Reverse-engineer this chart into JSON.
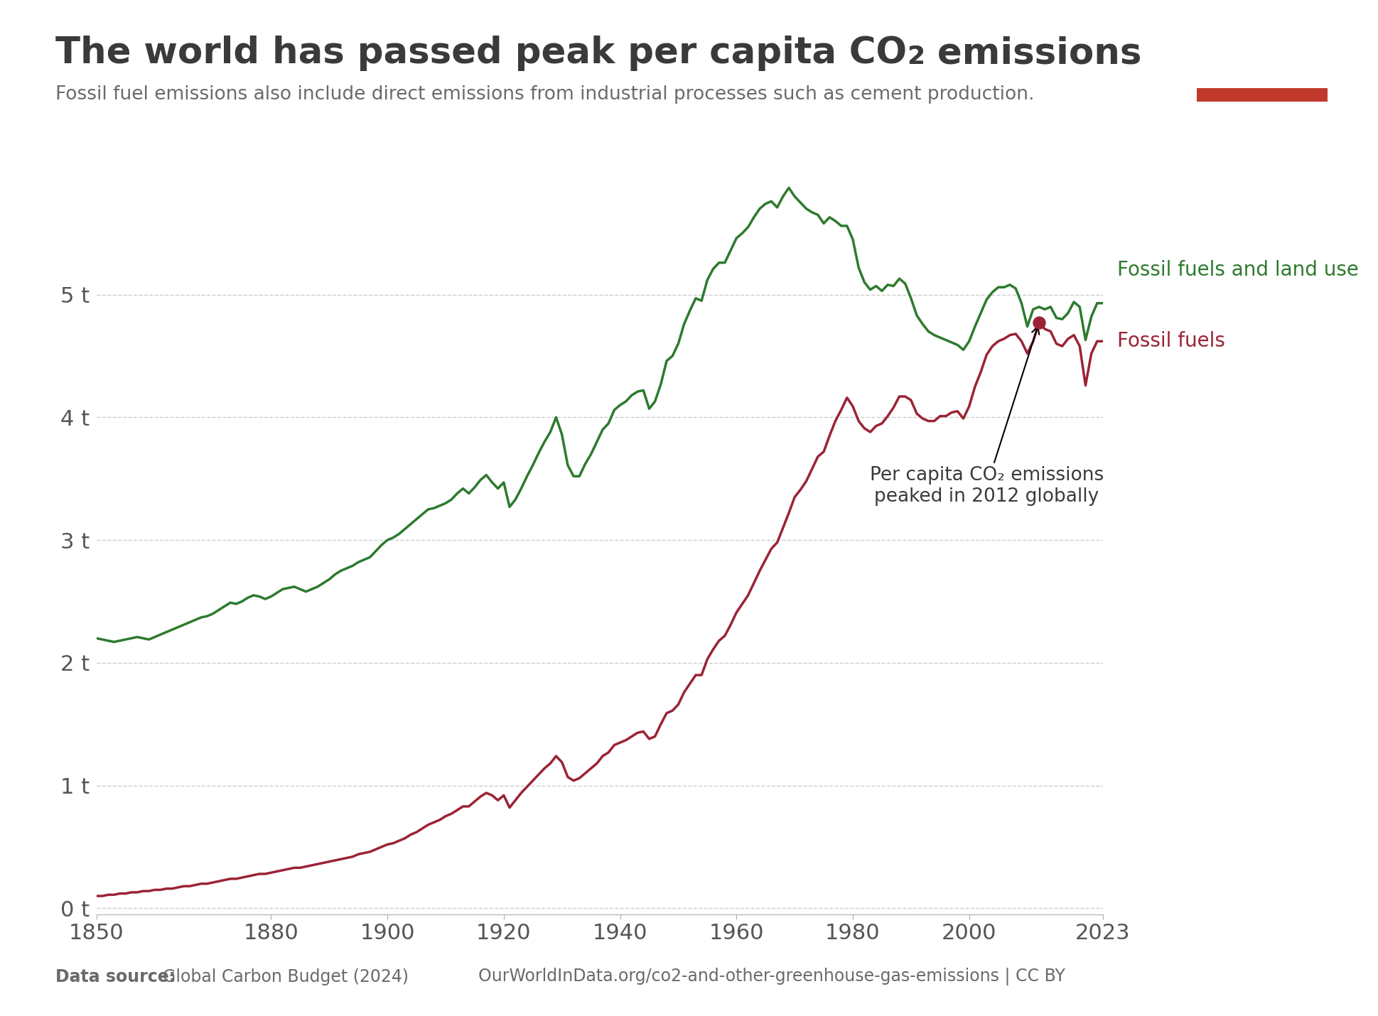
{
  "title_part1": "The world has passed peak per capita CO",
  "title_part2": " emissions",
  "subtitle": "Fossil fuel emissions also include direct emissions from industrial processes such as cement production.",
  "background_color": "#ffffff",
  "title_color": "#3a3a3a",
  "subtitle_color": "#6a6a6a",
  "logo_bg_color": "#1a2e4a",
  "logo_red_color": "#c0392b",
  "annotation_text": "Per capita CO₂ emissions\npeaked in 2012 globally",
  "label_fossil_land": "Fossil fuels and land use",
  "label_fossil": "Fossil fuels",
  "color_green": "#2d7a2d",
  "color_red": "#9b2335",
  "peak_year": 2012,
  "peak_value": 4.77,
  "xlim": [
    1850,
    2023
  ],
  "ylim": [
    -0.05,
    6.2
  ],
  "yticks": [
    0,
    1,
    2,
    3,
    4,
    5
  ],
  "ytick_labels": [
    "0 t",
    "1 t",
    "2 t",
    "3 t",
    "4 t",
    "5 t"
  ],
  "xticks": [
    1850,
    1880,
    1900,
    1920,
    1940,
    1960,
    1980,
    2000,
    2023
  ],
  "fossil_fuels_years": [
    1850,
    1851,
    1852,
    1853,
    1854,
    1855,
    1856,
    1857,
    1858,
    1859,
    1860,
    1861,
    1862,
    1863,
    1864,
    1865,
    1866,
    1867,
    1868,
    1869,
    1870,
    1871,
    1872,
    1873,
    1874,
    1875,
    1876,
    1877,
    1878,
    1879,
    1880,
    1881,
    1882,
    1883,
    1884,
    1885,
    1886,
    1887,
    1888,
    1889,
    1890,
    1891,
    1892,
    1893,
    1894,
    1895,
    1896,
    1897,
    1898,
    1899,
    1900,
    1901,
    1902,
    1903,
    1904,
    1905,
    1906,
    1907,
    1908,
    1909,
    1910,
    1911,
    1912,
    1913,
    1914,
    1915,
    1916,
    1917,
    1918,
    1919,
    1920,
    1921,
    1922,
    1923,
    1924,
    1925,
    1926,
    1927,
    1928,
    1929,
    1930,
    1931,
    1932,
    1933,
    1934,
    1935,
    1936,
    1937,
    1938,
    1939,
    1940,
    1941,
    1942,
    1943,
    1944,
    1945,
    1946,
    1947,
    1948,
    1949,
    1950,
    1951,
    1952,
    1953,
    1954,
    1955,
    1956,
    1957,
    1958,
    1959,
    1960,
    1961,
    1962,
    1963,
    1964,
    1965,
    1966,
    1967,
    1968,
    1969,
    1970,
    1971,
    1972,
    1973,
    1974,
    1975,
    1976,
    1977,
    1978,
    1979,
    1980,
    1981,
    1982,
    1983,
    1984,
    1985,
    1986,
    1987,
    1988,
    1989,
    1990,
    1991,
    1992,
    1993,
    1994,
    1995,
    1996,
    1997,
    1998,
    1999,
    2000,
    2001,
    2002,
    2003,
    2004,
    2005,
    2006,
    2007,
    2008,
    2009,
    2010,
    2011,
    2012,
    2013,
    2014,
    2015,
    2016,
    2017,
    2018,
    2019,
    2020,
    2021,
    2022,
    2023
  ],
  "fossil_fuels_values": [
    0.1,
    0.1,
    0.11,
    0.11,
    0.12,
    0.12,
    0.13,
    0.13,
    0.14,
    0.14,
    0.15,
    0.15,
    0.16,
    0.16,
    0.17,
    0.18,
    0.18,
    0.19,
    0.2,
    0.2,
    0.21,
    0.22,
    0.23,
    0.24,
    0.24,
    0.25,
    0.26,
    0.27,
    0.28,
    0.28,
    0.29,
    0.3,
    0.31,
    0.32,
    0.33,
    0.33,
    0.34,
    0.35,
    0.36,
    0.37,
    0.38,
    0.39,
    0.4,
    0.41,
    0.42,
    0.44,
    0.45,
    0.46,
    0.48,
    0.5,
    0.52,
    0.53,
    0.55,
    0.57,
    0.6,
    0.62,
    0.65,
    0.68,
    0.7,
    0.72,
    0.75,
    0.77,
    0.8,
    0.83,
    0.83,
    0.87,
    0.91,
    0.94,
    0.92,
    0.88,
    0.92,
    0.82,
    0.88,
    0.94,
    0.99,
    1.04,
    1.09,
    1.14,
    1.18,
    1.24,
    1.19,
    1.07,
    1.04,
    1.06,
    1.1,
    1.14,
    1.18,
    1.24,
    1.27,
    1.33,
    1.35,
    1.37,
    1.4,
    1.43,
    1.44,
    1.38,
    1.4,
    1.5,
    1.59,
    1.61,
    1.66,
    1.76,
    1.83,
    1.9,
    1.9,
    2.03,
    2.11,
    2.18,
    2.22,
    2.31,
    2.41,
    2.48,
    2.55,
    2.65,
    2.75,
    2.84,
    2.93,
    2.98,
    3.1,
    3.22,
    3.35,
    3.41,
    3.48,
    3.58,
    3.68,
    3.72,
    3.85,
    3.97,
    4.06,
    4.16,
    4.09,
    3.97,
    3.91,
    3.88,
    3.93,
    3.95,
    4.01,
    4.08,
    4.17,
    4.17,
    4.14,
    4.03,
    3.99,
    3.97,
    3.97,
    4.01,
    4.01,
    4.04,
    4.05,
    3.99,
    4.09,
    4.25,
    4.37,
    4.51,
    4.58,
    4.62,
    4.64,
    4.67,
    4.68,
    4.62,
    4.52,
    4.62,
    4.77,
    4.72,
    4.7,
    4.6,
    4.58,
    4.64,
    4.67,
    4.58,
    4.26,
    4.52,
    4.62,
    4.62
  ],
  "fossil_land_years": [
    1850,
    1851,
    1852,
    1853,
    1854,
    1855,
    1856,
    1857,
    1858,
    1859,
    1860,
    1861,
    1862,
    1863,
    1864,
    1865,
    1866,
    1867,
    1868,
    1869,
    1870,
    1871,
    1872,
    1873,
    1874,
    1875,
    1876,
    1877,
    1878,
    1879,
    1880,
    1881,
    1882,
    1883,
    1884,
    1885,
    1886,
    1887,
    1888,
    1889,
    1890,
    1891,
    1892,
    1893,
    1894,
    1895,
    1896,
    1897,
    1898,
    1899,
    1900,
    1901,
    1902,
    1903,
    1904,
    1905,
    1906,
    1907,
    1908,
    1909,
    1910,
    1911,
    1912,
    1913,
    1914,
    1915,
    1916,
    1917,
    1918,
    1919,
    1920,
    1921,
    1922,
    1923,
    1924,
    1925,
    1926,
    1927,
    1928,
    1929,
    1930,
    1931,
    1932,
    1933,
    1934,
    1935,
    1936,
    1937,
    1938,
    1939,
    1940,
    1941,
    1942,
    1943,
    1944,
    1945,
    1946,
    1947,
    1948,
    1949,
    1950,
    1951,
    1952,
    1953,
    1954,
    1955,
    1956,
    1957,
    1958,
    1959,
    1960,
    1961,
    1962,
    1963,
    1964,
    1965,
    1966,
    1967,
    1968,
    1969,
    1970,
    1971,
    1972,
    1973,
    1974,
    1975,
    1976,
    1977,
    1978,
    1979,
    1980,
    1981,
    1982,
    1983,
    1984,
    1985,
    1986,
    1987,
    1988,
    1989,
    1990,
    1991,
    1992,
    1993,
    1994,
    1995,
    1996,
    1997,
    1998,
    1999,
    2000,
    2001,
    2002,
    2003,
    2004,
    2005,
    2006,
    2007,
    2008,
    2009,
    2010,
    2011,
    2012,
    2013,
    2014,
    2015,
    2016,
    2017,
    2018,
    2019,
    2020,
    2021,
    2022,
    2023
  ],
  "fossil_land_values": [
    2.2,
    2.19,
    2.18,
    2.17,
    2.18,
    2.19,
    2.2,
    2.21,
    2.2,
    2.19,
    2.21,
    2.23,
    2.25,
    2.27,
    2.29,
    2.31,
    2.33,
    2.35,
    2.37,
    2.38,
    2.4,
    2.43,
    2.46,
    2.49,
    2.48,
    2.5,
    2.53,
    2.55,
    2.54,
    2.52,
    2.54,
    2.57,
    2.6,
    2.61,
    2.62,
    2.6,
    2.58,
    2.6,
    2.62,
    2.65,
    2.68,
    2.72,
    2.75,
    2.77,
    2.79,
    2.82,
    2.84,
    2.86,
    2.91,
    2.96,
    3.0,
    3.02,
    3.05,
    3.09,
    3.13,
    3.17,
    3.21,
    3.25,
    3.26,
    3.28,
    3.3,
    3.33,
    3.38,
    3.42,
    3.38,
    3.43,
    3.49,
    3.53,
    3.47,
    3.42,
    3.47,
    3.27,
    3.33,
    3.42,
    3.52,
    3.61,
    3.71,
    3.8,
    3.88,
    4.0,
    3.86,
    3.61,
    3.52,
    3.52,
    3.62,
    3.7,
    3.8,
    3.9,
    3.95,
    4.06,
    4.1,
    4.13,
    4.18,
    4.21,
    4.22,
    4.07,
    4.13,
    4.27,
    4.46,
    4.5,
    4.6,
    4.76,
    4.87,
    4.97,
    4.95,
    5.12,
    5.21,
    5.26,
    5.26,
    5.36,
    5.46,
    5.5,
    5.55,
    5.63,
    5.7,
    5.74,
    5.76,
    5.71,
    5.8,
    5.87,
    5.8,
    5.75,
    5.7,
    5.67,
    5.65,
    5.58,
    5.63,
    5.6,
    5.56,
    5.56,
    5.45,
    5.22,
    5.1,
    5.04,
    5.07,
    5.03,
    5.08,
    5.07,
    5.13,
    5.09,
    4.97,
    4.83,
    4.76,
    4.7,
    4.67,
    4.65,
    4.63,
    4.61,
    4.59,
    4.55,
    4.62,
    4.74,
    4.85,
    4.96,
    5.02,
    5.06,
    5.06,
    5.08,
    5.05,
    4.93,
    4.74,
    4.88,
    4.9,
    4.88,
    4.9,
    4.81,
    4.8,
    4.85,
    4.94,
    4.9,
    4.63,
    4.82,
    4.93,
    4.93
  ]
}
